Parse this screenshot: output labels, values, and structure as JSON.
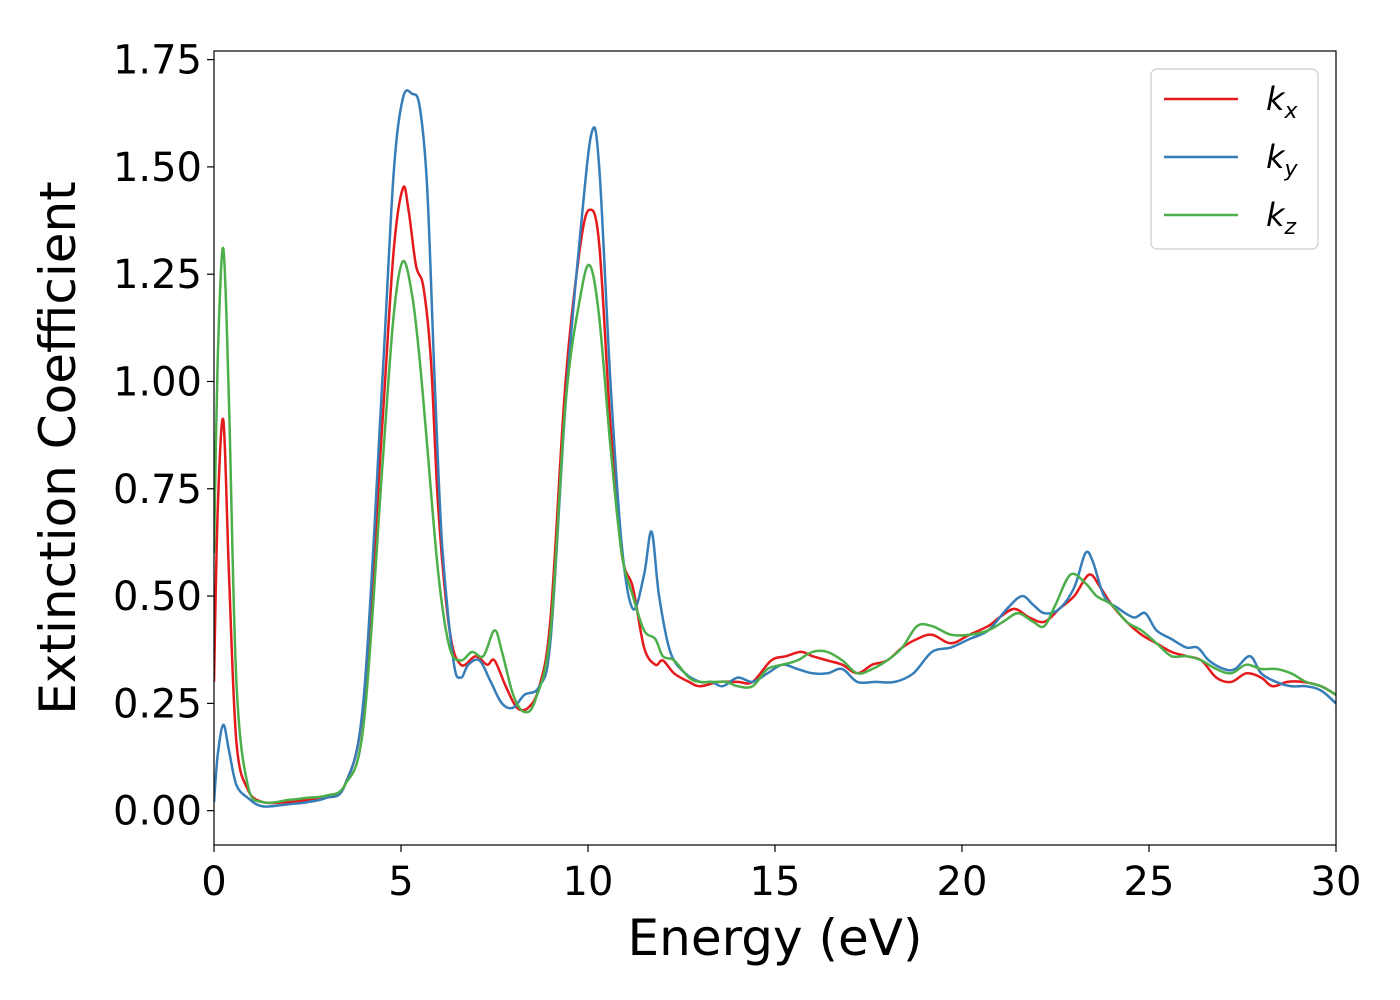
{
  "chart_data": {
    "type": "line",
    "xlabel": "Energy (eV)",
    "ylabel": "Extinction Coefficient",
    "xlim": [
      0,
      30
    ],
    "ylim": [
      -0.08,
      1.77
    ],
    "x_ticks": [
      0,
      5,
      10,
      15,
      20,
      25,
      30
    ],
    "y_ticks": [
      "0.00",
      "0.25",
      "0.50",
      "0.75",
      "1.00",
      "1.25",
      "1.50",
      "1.75"
    ],
    "grid": false,
    "legend_position": "top-right",
    "series": [
      {
        "name": "k_x",
        "legend_main": "k",
        "legend_sub": "x",
        "color": "#e41a1c",
        "points": [
          [
            0,
            0.3
          ],
          [
            0.1,
            0.7
          ],
          [
            0.25,
            0.91
          ],
          [
            0.4,
            0.55
          ],
          [
            0.6,
            0.16
          ],
          [
            0.9,
            0.05
          ],
          [
            1.3,
            0.02
          ],
          [
            2,
            0.02
          ],
          [
            2.5,
            0.025
          ],
          [
            3,
            0.03
          ],
          [
            3.5,
            0.06
          ],
          [
            4,
            0.25
          ],
          [
            4.5,
            0.9
          ],
          [
            4.8,
            1.3
          ],
          [
            5.05,
            1.45
          ],
          [
            5.2,
            1.4
          ],
          [
            5.4,
            1.27
          ],
          [
            5.6,
            1.22
          ],
          [
            5.8,
            1.05
          ],
          [
            6,
            0.7
          ],
          [
            6.3,
            0.42
          ],
          [
            6.6,
            0.34
          ],
          [
            7,
            0.36
          ],
          [
            7.3,
            0.34
          ],
          [
            7.5,
            0.35
          ],
          [
            7.8,
            0.29
          ],
          [
            8.1,
            0.24
          ],
          [
            8.4,
            0.24
          ],
          [
            8.7,
            0.29
          ],
          [
            9,
            0.45
          ],
          [
            9.4,
            1.0
          ],
          [
            9.8,
            1.32
          ],
          [
            10.05,
            1.4
          ],
          [
            10.3,
            1.32
          ],
          [
            10.6,
            0.9
          ],
          [
            10.9,
            0.6
          ],
          [
            11.2,
            0.52
          ],
          [
            11.5,
            0.38
          ],
          [
            11.8,
            0.34
          ],
          [
            12,
            0.35
          ],
          [
            12.3,
            0.32
          ],
          [
            12.7,
            0.3
          ],
          [
            13,
            0.29
          ],
          [
            13.5,
            0.3
          ],
          [
            14,
            0.3
          ],
          [
            14.4,
            0.3
          ],
          [
            14.9,
            0.35
          ],
          [
            15.3,
            0.36
          ],
          [
            15.7,
            0.37
          ],
          [
            16,
            0.36
          ],
          [
            16.4,
            0.35
          ],
          [
            16.8,
            0.34
          ],
          [
            17.2,
            0.32
          ],
          [
            17.6,
            0.34
          ],
          [
            18,
            0.35
          ],
          [
            18.4,
            0.38
          ],
          [
            18.8,
            0.4
          ],
          [
            19.2,
            0.41
          ],
          [
            19.7,
            0.39
          ],
          [
            20.2,
            0.41
          ],
          [
            20.7,
            0.43
          ],
          [
            21,
            0.45
          ],
          [
            21.4,
            0.47
          ],
          [
            21.8,
            0.45
          ],
          [
            22.2,
            0.44
          ],
          [
            22.6,
            0.47
          ],
          [
            23,
            0.5
          ],
          [
            23.4,
            0.55
          ],
          [
            23.7,
            0.52
          ],
          [
            24,
            0.48
          ],
          [
            24.4,
            0.44
          ],
          [
            24.8,
            0.41
          ],
          [
            25.2,
            0.39
          ],
          [
            25.6,
            0.37
          ],
          [
            26,
            0.36
          ],
          [
            26.4,
            0.35
          ],
          [
            26.8,
            0.31
          ],
          [
            27.2,
            0.3
          ],
          [
            27.6,
            0.32
          ],
          [
            28,
            0.31
          ],
          [
            28.3,
            0.29
          ],
          [
            28.7,
            0.3
          ],
          [
            29.1,
            0.3
          ],
          [
            29.6,
            0.29
          ],
          [
            30,
            0.27
          ]
        ]
      },
      {
        "name": "k_y",
        "legend_main": "k",
        "legend_sub": "y",
        "color": "#377eb8",
        "points": [
          [
            0,
            0.02
          ],
          [
            0.1,
            0.13
          ],
          [
            0.25,
            0.2
          ],
          [
            0.4,
            0.14
          ],
          [
            0.6,
            0.06
          ],
          [
            0.9,
            0.03
          ],
          [
            1.3,
            0.01
          ],
          [
            2,
            0.015
          ],
          [
            2.5,
            0.02
          ],
          [
            3,
            0.03
          ],
          [
            3.5,
            0.06
          ],
          [
            4,
            0.26
          ],
          [
            4.5,
            1.0
          ],
          [
            4.8,
            1.48
          ],
          [
            5.05,
            1.66
          ],
          [
            5.3,
            1.67
          ],
          [
            5.5,
            1.64
          ],
          [
            5.7,
            1.45
          ],
          [
            5.9,
            1.0
          ],
          [
            6.1,
            0.62
          ],
          [
            6.4,
            0.35
          ],
          [
            6.6,
            0.31
          ],
          [
            6.8,
            0.34
          ],
          [
            7.1,
            0.35
          ],
          [
            7.4,
            0.3
          ],
          [
            7.7,
            0.25
          ],
          [
            8,
            0.24
          ],
          [
            8.3,
            0.27
          ],
          [
            8.7,
            0.29
          ],
          [
            9,
            0.4
          ],
          [
            9.4,
            0.95
          ],
          [
            9.8,
            1.35
          ],
          [
            10.1,
            1.58
          ],
          [
            10.3,
            1.5
          ],
          [
            10.6,
            1.0
          ],
          [
            10.9,
            0.62
          ],
          [
            11.2,
            0.47
          ],
          [
            11.5,
            0.55
          ],
          [
            11.7,
            0.65
          ],
          [
            11.9,
            0.5
          ],
          [
            12.2,
            0.37
          ],
          [
            12.6,
            0.32
          ],
          [
            13,
            0.3
          ],
          [
            13.3,
            0.3
          ],
          [
            13.6,
            0.29
          ],
          [
            14,
            0.31
          ],
          [
            14.4,
            0.3
          ],
          [
            14.8,
            0.32
          ],
          [
            15.2,
            0.34
          ],
          [
            15.6,
            0.33
          ],
          [
            16,
            0.32
          ],
          [
            16.4,
            0.32
          ],
          [
            16.8,
            0.33
          ],
          [
            17.2,
            0.3
          ],
          [
            17.7,
            0.3
          ],
          [
            18.2,
            0.3
          ],
          [
            18.7,
            0.32
          ],
          [
            19.2,
            0.37
          ],
          [
            19.7,
            0.38
          ],
          [
            20.2,
            0.4
          ],
          [
            20.7,
            0.42
          ],
          [
            21.2,
            0.47
          ],
          [
            21.6,
            0.5
          ],
          [
            21.9,
            0.48
          ],
          [
            22.2,
            0.46
          ],
          [
            22.6,
            0.47
          ],
          [
            23,
            0.52
          ],
          [
            23.3,
            0.6
          ],
          [
            23.5,
            0.58
          ],
          [
            23.8,
            0.5
          ],
          [
            24.2,
            0.47
          ],
          [
            24.6,
            0.45
          ],
          [
            24.9,
            0.46
          ],
          [
            25.2,
            0.42
          ],
          [
            25.6,
            0.4
          ],
          [
            26,
            0.38
          ],
          [
            26.3,
            0.38
          ],
          [
            26.6,
            0.35
          ],
          [
            27,
            0.33
          ],
          [
            27.3,
            0.33
          ],
          [
            27.7,
            0.36
          ],
          [
            28,
            0.32
          ],
          [
            28.4,
            0.3
          ],
          [
            28.8,
            0.29
          ],
          [
            29.2,
            0.29
          ],
          [
            29.6,
            0.28
          ],
          [
            30,
            0.25
          ]
        ]
      },
      {
        "name": "k_z",
        "legend_main": "k",
        "legend_sub": "z",
        "color": "#4daf4a",
        "points": [
          [
            0,
            0.6
          ],
          [
            0.1,
            1.05
          ],
          [
            0.25,
            1.31
          ],
          [
            0.4,
            0.95
          ],
          [
            0.6,
            0.3
          ],
          [
            0.9,
            0.06
          ],
          [
            1.3,
            0.02
          ],
          [
            2,
            0.025
          ],
          [
            2.5,
            0.03
          ],
          [
            3,
            0.035
          ],
          [
            3.5,
            0.06
          ],
          [
            4,
            0.2
          ],
          [
            4.5,
            0.8
          ],
          [
            4.8,
            1.15
          ],
          [
            5.05,
            1.28
          ],
          [
            5.3,
            1.2
          ],
          [
            5.5,
            1.05
          ],
          [
            5.7,
            0.85
          ],
          [
            6,
            0.55
          ],
          [
            6.3,
            0.38
          ],
          [
            6.6,
            0.35
          ],
          [
            6.9,
            0.37
          ],
          [
            7.2,
            0.36
          ],
          [
            7.5,
            0.42
          ],
          [
            7.7,
            0.37
          ],
          [
            8,
            0.27
          ],
          [
            8.3,
            0.23
          ],
          [
            8.6,
            0.26
          ],
          [
            9,
            0.42
          ],
          [
            9.4,
            0.95
          ],
          [
            9.8,
            1.2
          ],
          [
            10.05,
            1.27
          ],
          [
            10.3,
            1.15
          ],
          [
            10.6,
            0.85
          ],
          [
            10.9,
            0.6
          ],
          [
            11.2,
            0.5
          ],
          [
            11.5,
            0.42
          ],
          [
            11.8,
            0.4
          ],
          [
            12,
            0.36
          ],
          [
            12.3,
            0.35
          ],
          [
            12.7,
            0.31
          ],
          [
            13,
            0.3
          ],
          [
            13.4,
            0.3
          ],
          [
            13.7,
            0.3
          ],
          [
            14,
            0.29
          ],
          [
            14.4,
            0.29
          ],
          [
            14.8,
            0.33
          ],
          [
            15.2,
            0.34
          ],
          [
            15.6,
            0.35
          ],
          [
            16,
            0.37
          ],
          [
            16.4,
            0.37
          ],
          [
            16.8,
            0.35
          ],
          [
            17.2,
            0.32
          ],
          [
            17.6,
            0.33
          ],
          [
            18,
            0.35
          ],
          [
            18.4,
            0.38
          ],
          [
            18.8,
            0.43
          ],
          [
            19.2,
            0.43
          ],
          [
            19.7,
            0.41
          ],
          [
            20.2,
            0.41
          ],
          [
            20.7,
            0.42
          ],
          [
            21.1,
            0.44
          ],
          [
            21.5,
            0.46
          ],
          [
            21.9,
            0.44
          ],
          [
            22.2,
            0.43
          ],
          [
            22.5,
            0.48
          ],
          [
            22.9,
            0.55
          ],
          [
            23.3,
            0.53
          ],
          [
            23.6,
            0.5
          ],
          [
            24,
            0.48
          ],
          [
            24.4,
            0.44
          ],
          [
            24.8,
            0.42
          ],
          [
            25.2,
            0.39
          ],
          [
            25.6,
            0.36
          ],
          [
            26,
            0.36
          ],
          [
            26.4,
            0.35
          ],
          [
            26.8,
            0.33
          ],
          [
            27.2,
            0.32
          ],
          [
            27.6,
            0.34
          ],
          [
            28,
            0.33
          ],
          [
            28.4,
            0.33
          ],
          [
            28.8,
            0.32
          ],
          [
            29.2,
            0.3
          ],
          [
            29.6,
            0.29
          ],
          [
            30,
            0.27
          ]
        ]
      }
    ]
  }
}
